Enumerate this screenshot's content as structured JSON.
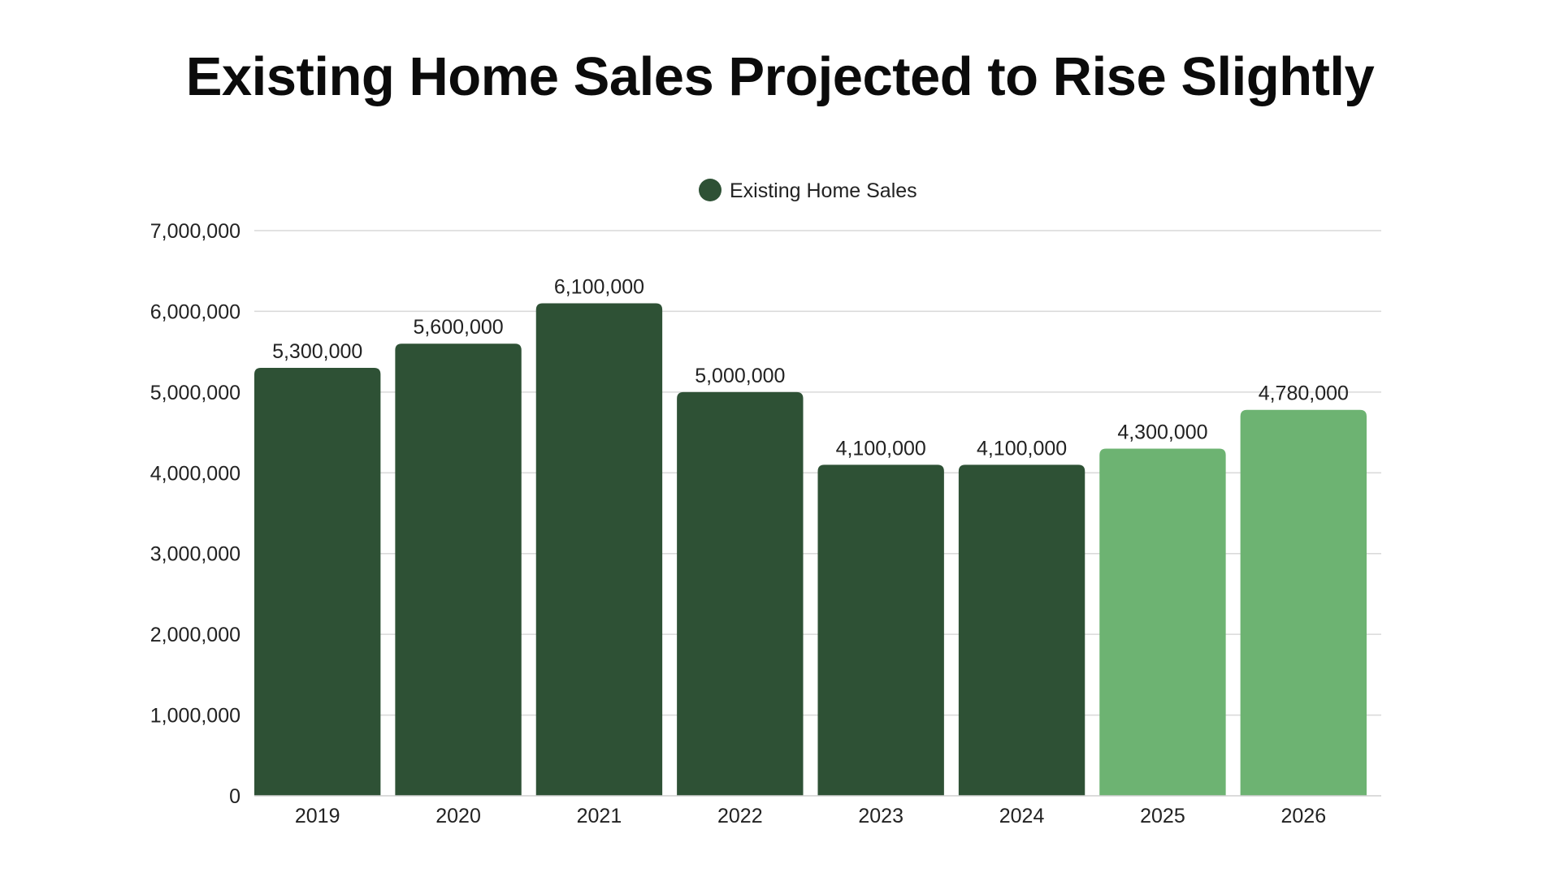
{
  "chart_data": {
    "type": "bar",
    "title": "Existing Home Sales Projected to Rise Slightly",
    "categories": [
      "2019",
      "2020",
      "2021",
      "2022",
      "2023",
      "2024",
      "2025",
      "2026"
    ],
    "series": [
      {
        "name": "Existing Home Sales",
        "values": [
          5300000,
          5600000,
          6100000,
          5000000,
          4100000,
          4100000,
          4300000,
          4780000
        ],
        "data_labels": [
          "5,300,000",
          "5,600,000",
          "6,100,000",
          "5,000,000",
          "4,100,000",
          "4,100,000",
          "4,300,000",
          "4,780,000"
        ]
      }
    ],
    "y_ticks": [
      "0",
      "1,000,000",
      "2,000,000",
      "3,000,000",
      "4,000,000",
      "5,000,000",
      "6,000,000",
      "7,000,000"
    ],
    "ylim": [
      0,
      7000000
    ],
    "xlabel": "",
    "ylabel": "",
    "grid": true,
    "legend_position": "top-center",
    "colors": {
      "actual": "#2e5135",
      "projected": "#6db372",
      "gridline": "#d9d9d9",
      "legend_marker": "#2e5135"
    },
    "projected_categories": [
      "2025",
      "2026"
    ]
  }
}
